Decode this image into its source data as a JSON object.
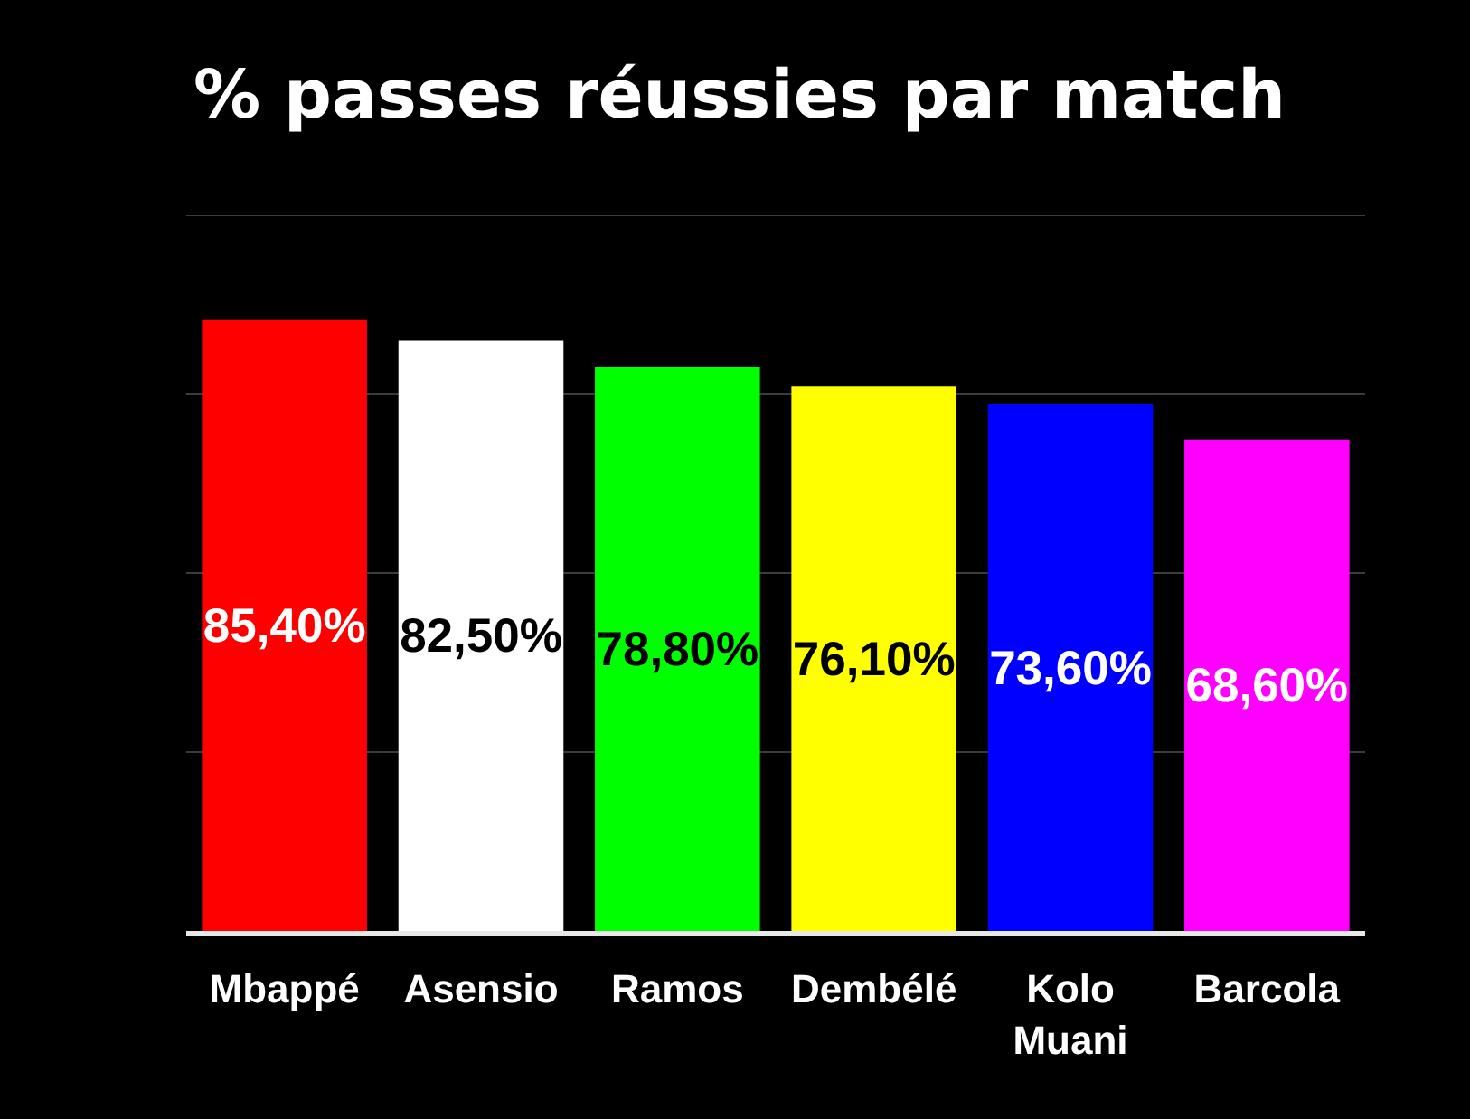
{
  "chart_data": {
    "type": "bar",
    "title": "% passes réussies par match",
    "categories": [
      "Mbappé",
      "Asensio",
      "Ramos",
      "Dembélé",
      "Kolo Muani",
      "Barcola"
    ],
    "values": [
      85.4,
      82.5,
      78.8,
      76.1,
      73.6,
      68.6
    ],
    "value_labels": [
      "85,40%",
      "82,50%",
      "78,80%",
      "76,10%",
      "73,60%",
      "68,60%"
    ],
    "colors": [
      "#ff0000",
      "#ffffff",
      "#00ff00",
      "#ffff00",
      "#0000ff",
      "#ff00ff"
    ],
    "ylim": [
      0,
      100
    ],
    "yticks": [
      {
        "value": 0,
        "label": null
      },
      {
        "value": 25,
        "label": null
      },
      {
        "value": 50,
        "label": null
      },
      {
        "value": 75,
        "label": null
      },
      {
        "value": 100,
        "label": null
      }
    ],
    "grid": "y",
    "tick_labels": "x"
  }
}
